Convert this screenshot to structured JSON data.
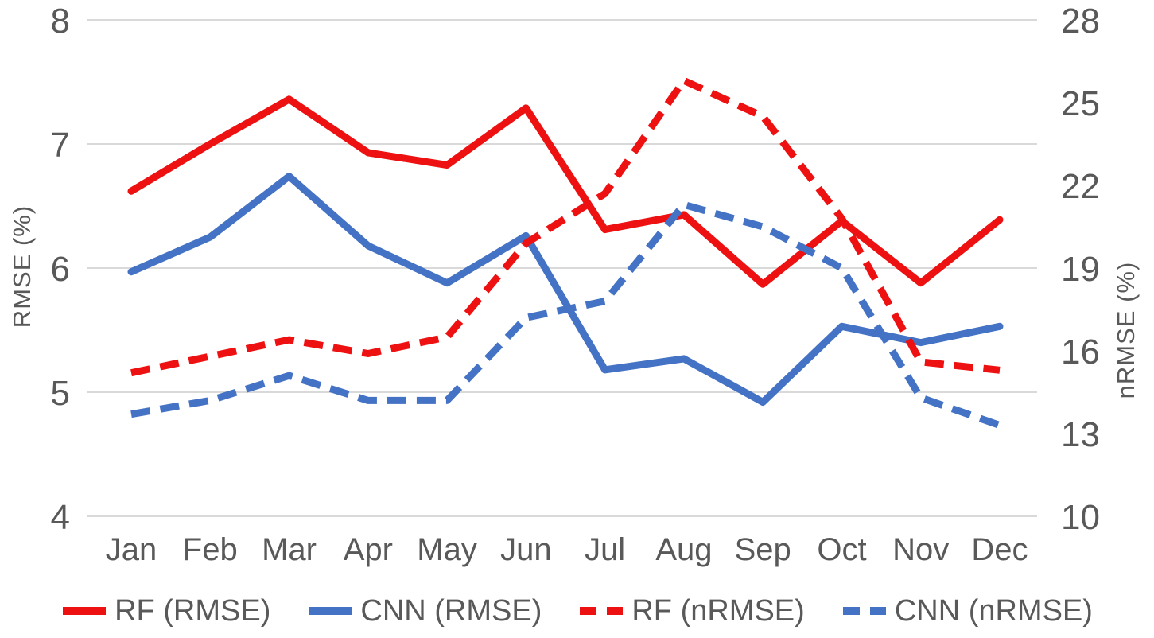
{
  "chart_data": {
    "type": "line",
    "title": "",
    "categories": [
      "Jan",
      "Feb",
      "Mar",
      "Apr",
      "May",
      "Jun",
      "Jul",
      "Aug",
      "Sep",
      "Oct",
      "Nov",
      "Dec"
    ],
    "left_axis": {
      "label": "RMSE (%)",
      "min": 4,
      "max": 8,
      "ticks": [
        8,
        7,
        6,
        5,
        4
      ]
    },
    "right_axis": {
      "label": "nRMSE (%)",
      "min": 10,
      "max": 28,
      "ticks": [
        28,
        25,
        22,
        19,
        16,
        13,
        10
      ]
    },
    "grid": "horizontal",
    "legend_position": "bottom",
    "series": [
      {
        "name": "RF (RMSE)",
        "axis": "left",
        "style": "solid",
        "color": "#EE1111",
        "values": [
          6.62,
          7.0,
          7.36,
          6.93,
          6.83,
          7.29,
          6.31,
          6.43,
          5.87,
          6.38,
          5.88,
          6.39
        ]
      },
      {
        "name": "CNN (RMSE)",
        "axis": "left",
        "style": "solid",
        "color": "#4472C4",
        "values": [
          5.97,
          6.25,
          6.74,
          6.18,
          5.88,
          6.26,
          5.18,
          5.27,
          4.92,
          5.53,
          5.4,
          5.53
        ]
      },
      {
        "name": "RF (nRMSE)",
        "axis": "right",
        "style": "dashed",
        "color": "#EE1111",
        "values": [
          15.2,
          15.8,
          16.4,
          15.9,
          16.5,
          19.9,
          21.7,
          25.8,
          24.5,
          20.8,
          15.6,
          15.3
        ]
      },
      {
        "name": "CNN (nRMSE)",
        "axis": "right",
        "style": "dashed",
        "color": "#4472C4",
        "values": [
          13.7,
          14.2,
          15.1,
          14.2,
          14.2,
          17.2,
          17.8,
          21.3,
          20.5,
          19.0,
          14.3,
          13.3
        ]
      }
    ]
  },
  "colors": {
    "text": "#595959",
    "gridline": "#D9D9D9",
    "background": "#FFFFFF",
    "series_red": "#EE1111",
    "series_blue": "#4472C4"
  }
}
